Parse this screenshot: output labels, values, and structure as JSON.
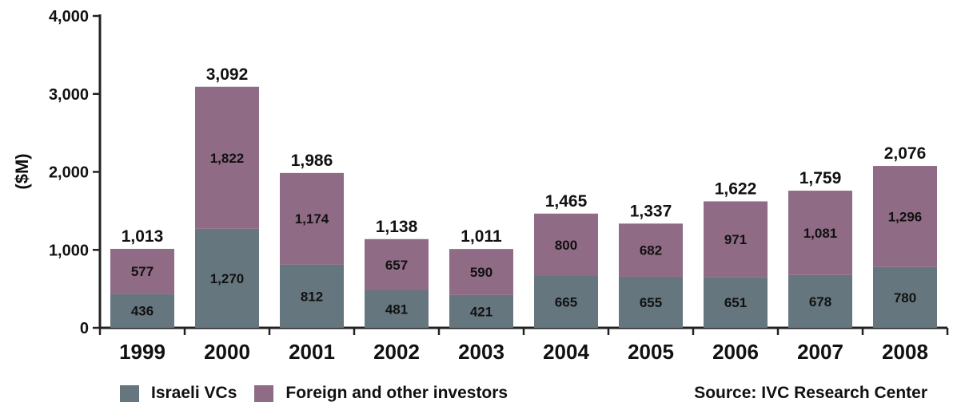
{
  "chart_data": {
    "type": "bar",
    "stacked": true,
    "categories": [
      "1999",
      "2000",
      "2001",
      "2002",
      "2003",
      "2004",
      "2005",
      "2006",
      "2007",
      "2008"
    ],
    "series": [
      {
        "name": "Israeli VCs",
        "color": "#65767f",
        "values": [
          436,
          1270,
          812,
          481,
          421,
          665,
          655,
          651,
          678,
          780
        ]
      },
      {
        "name": "Foreign and other investors",
        "color": "#8f6b85",
        "values": [
          577,
          1822,
          1174,
          657,
          590,
          800,
          682,
          971,
          1081,
          1296
        ]
      }
    ],
    "totals": [
      1013,
      3092,
      1986,
      1138,
      1011,
      1465,
      1337,
      1622,
      1759,
      2076
    ],
    "ylabel": "($M)",
    "ylim": [
      0,
      4000
    ],
    "yticks": [
      0,
      1000,
      2000,
      3000,
      4000
    ],
    "ytick_labels": [
      "0",
      "1,000",
      "2,000",
      "3,000",
      "4,000"
    ],
    "grid": false,
    "legend_position": "bottom",
    "source_note": "Source: IVC Research Center"
  }
}
